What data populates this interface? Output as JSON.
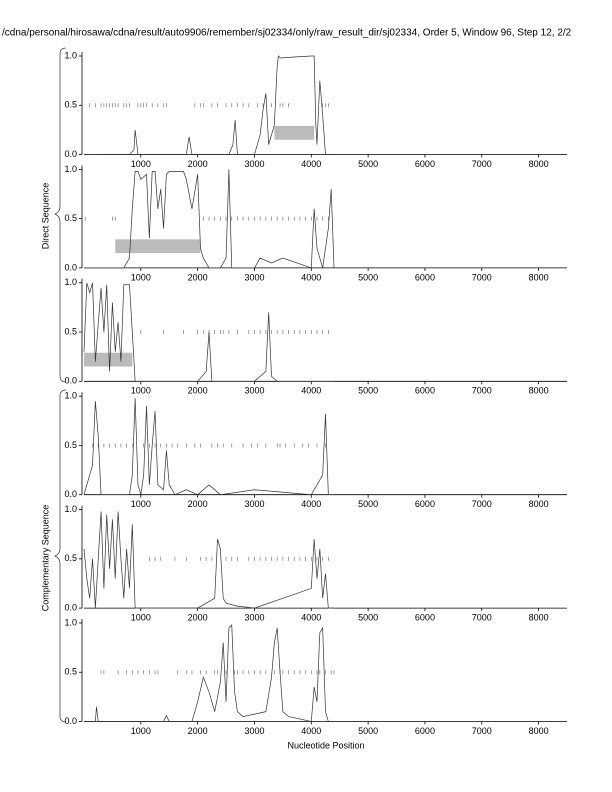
{
  "title": "/cdna/personal/hirosawa/cdna/result/auto9906/remember/sj02334/only/raw_result_dir/sj02334, Order 5, Window 96, Step 12, 2/2",
  "group_labels": [
    "Direct Sequence",
    "Complementary Sequence"
  ],
  "xlabel": "Nucleotide Position",
  "chart_data": [
    {
      "type": "line",
      "xlim": [
        0,
        8500
      ],
      "xticks": [
        1000,
        2000,
        3000,
        4000,
        5000,
        6000,
        7000,
        8000
      ],
      "ylim": [
        0,
        1
      ],
      "yticks": [
        {
          "value": 0,
          "label": "0.0"
        },
        {
          "value": 0.5,
          "label": "0.5"
        },
        {
          "value": 1,
          "label": "1.0"
        }
      ],
      "series": [
        {
          "color": "#333333",
          "x": [
            250,
            500,
            800,
            880,
            900,
            950,
            1100,
            1500,
            1800,
            1850,
            1900,
            2200,
            2550,
            2620,
            2660,
            2700,
            3000,
            3100,
            3150,
            3200,
            3250,
            3350,
            3400,
            3420,
            3450,
            3700,
            4000,
            4050,
            4080,
            4100,
            4150,
            4200,
            4250,
            4400
          ],
          "values": [
            0,
            0,
            0,
            0.05,
            0.25,
            0,
            0,
            0,
            0,
            0.18,
            0,
            0,
            0,
            0.1,
            0.35,
            0,
            0,
            0.2,
            0.45,
            0.62,
            0.1,
            0.3,
            0.9,
            1,
            0.98,
            0.99,
            1,
            1,
            0.3,
            0.1,
            0.75,
            0.4,
            0,
            0
          ]
        }
      ],
      "markers": {
        "y": 0.5,
        "x": [
          100,
          200,
          300,
          350,
          400,
          450,
          500,
          550,
          600,
          700,
          750,
          800,
          950,
          1000,
          1050,
          1100,
          1200,
          1300,
          1400,
          1450,
          1950,
          2050,
          2100,
          2250,
          2350,
          2500,
          2600,
          2700,
          2800,
          2900,
          3050,
          3150,
          3300,
          3450,
          3500,
          3600,
          4200,
          4250,
          4300
        ]
      },
      "regions": [
        [
          3350,
          4050
        ]
      ]
    },
    {
      "type": "line",
      "xlim": [
        0,
        8500
      ],
      "xticks": [
        1000,
        2000,
        3000,
        4000,
        5000,
        6000,
        7000,
        8000
      ],
      "ylim": [
        0,
        1
      ],
      "yticks": [
        {
          "value": 0,
          "label": "0.0"
        },
        {
          "value": 0.5,
          "label": "0.5"
        },
        {
          "value": 1,
          "label": "1.0"
        }
      ],
      "series": [
        {
          "color": "#333333",
          "x": [
            0,
            300,
            500,
            700,
            800,
            850,
            900,
            950,
            1000,
            1100,
            1150,
            1200,
            1250,
            1300,
            1350,
            1400,
            1450,
            1500,
            1600,
            1750,
            1800,
            1900,
            2000,
            2050,
            2100,
            2200,
            2400,
            2500,
            2550,
            2600,
            3000,
            3100,
            3300,
            3500,
            4000,
            4050,
            4100,
            4200,
            4300,
            4350,
            4400
          ],
          "values": [
            0,
            0,
            0,
            0,
            0.1,
            0.6,
            0.98,
            0.98,
            0.9,
            0.95,
            0.3,
            0.98,
            0.98,
            0.6,
            0.8,
            0.4,
            0.95,
            0.98,
            0.98,
            0.98,
            0.9,
            0.6,
            0.95,
            0.2,
            0.1,
            0,
            0,
            0.1,
            1.0,
            0,
            0,
            0.1,
            0.05,
            0.1,
            0,
            0.6,
            0.2,
            0,
            0.4,
            0.8,
            0
          ]
        }
      ],
      "markers": {
        "y": 0.5,
        "x": [
          20,
          500,
          550,
          2100,
          2200,
          2300,
          2400,
          2500,
          2600,
          2700,
          2800,
          2900,
          3000,
          3100,
          3200,
          3300,
          3400,
          3500,
          3600,
          3700,
          3800,
          3900,
          4000,
          4100,
          4200,
          4300
        ]
      },
      "regions": [
        [
          550,
          2050
        ]
      ]
    },
    {
      "type": "line",
      "xlim": [
        0,
        8500
      ],
      "xticks": [
        1000,
        2000,
        3000,
        4000,
        5000,
        6000,
        7000,
        8000
      ],
      "ylim": [
        0,
        1
      ],
      "yticks": [
        {
          "value": 0,
          "label": "0.0"
        },
        {
          "value": 0.5,
          "label": "0.5"
        },
        {
          "value": 1,
          "label": "1.0"
        }
      ],
      "series": [
        {
          "color": "#333333",
          "x": [
            0,
            50,
            100,
            150,
            200,
            300,
            350,
            400,
            450,
            500,
            550,
            600,
            650,
            700,
            750,
            800,
            850,
            900,
            1000,
            1500,
            2000,
            2150,
            2200,
            2250,
            2400,
            3000,
            3200,
            3250,
            3300,
            3400,
            4000,
            4400
          ],
          "values": [
            0.3,
            1,
            0.9,
            1,
            0.2,
            0.95,
            0.5,
            0.98,
            0.1,
            0.8,
            0.3,
            0.6,
            0.2,
            0.98,
            0.98,
            0.98,
            0.5,
            0,
            0,
            0,
            0,
            0.1,
            0.5,
            0,
            0,
            0,
            0.1,
            0.7,
            0.05,
            0,
            0,
            0
          ]
        }
      ],
      "markers": {
        "y": 0.5,
        "x": [
          1000,
          1400,
          1750,
          2000,
          2100,
          2200,
          2300,
          2400,
          2450,
          2550,
          2700,
          2900,
          3000,
          3100,
          3200,
          3300,
          3400,
          3500,
          3600,
          3700,
          3800,
          3900,
          4000,
          4100,
          4200,
          4300
        ]
      },
      "regions": [
        [
          0,
          850
        ]
      ]
    },
    {
      "type": "line",
      "xlim": [
        0,
        8500
      ],
      "xticks": [
        1000,
        2000,
        3000,
        4000,
        5000,
        6000,
        7000,
        8000
      ],
      "ylim": [
        0,
        1
      ],
      "yticks": [
        {
          "value": 0,
          "label": "0.0"
        },
        {
          "value": 0.5,
          "label": "0.5"
        },
        {
          "value": 1,
          "label": "1.0"
        }
      ],
      "series": [
        {
          "color": "#333333",
          "x": [
            0,
            150,
            200,
            250,
            300,
            500,
            800,
            850,
            900,
            950,
            1000,
            1050,
            1100,
            1150,
            1200,
            1250,
            1300,
            1400,
            1450,
            1500,
            1600,
            1800,
            2000,
            2200,
            2400,
            3000,
            4000,
            4200,
            4250,
            4300,
            4400
          ],
          "values": [
            0,
            0.3,
            0.95,
            0.6,
            0,
            0,
            0,
            0.2,
            0.98,
            0.1,
            0,
            0.2,
            0.9,
            0.1,
            0.5,
            0.85,
            0.1,
            0.05,
            0.45,
            0.1,
            0,
            0.05,
            0,
            0.1,
            0,
            0.05,
            0,
            0.2,
            0.82,
            0,
            0
          ]
        }
      ],
      "markers": {
        "y": 0.5,
        "x": [
          150,
          250,
          350,
          450,
          550,
          650,
          750,
          850,
          1050,
          1150,
          1250,
          1350,
          1450,
          1550,
          1650,
          1800,
          1950,
          2050,
          2250,
          2350,
          2450,
          2600,
          2800,
          2950,
          3050,
          3200,
          3400,
          3450,
          3550,
          3700,
          3850,
          3950,
          4100,
          4250
        ]
      }
    },
    {
      "type": "line",
      "xlim": [
        0,
        8500
      ],
      "xticks": [
        1000,
        2000,
        3000,
        4000,
        5000,
        6000,
        7000,
        8000
      ],
      "ylim": [
        0,
        1
      ],
      "yticks": [
        {
          "value": 0,
          "label": "0.0"
        },
        {
          "value": 0.5,
          "label": "0.5"
        },
        {
          "value": 1,
          "label": "1.0"
        }
      ],
      "series": [
        {
          "color": "#333333",
          "x": [
            0,
            50,
            100,
            150,
            200,
            300,
            350,
            400,
            450,
            500,
            550,
            600,
            650,
            700,
            750,
            800,
            850,
            900,
            1000,
            2000,
            2300,
            2350,
            2400,
            2450,
            2500,
            2700,
            3000,
            4000,
            4050,
            4100,
            4150,
            4200,
            4250,
            4300,
            4400
          ],
          "values": [
            0.6,
            0.3,
            0.1,
            0.5,
            0,
            0.98,
            0.2,
            0.95,
            0.4,
            0.9,
            0.3,
            0.98,
            0.5,
            0.1,
            0.6,
            0.2,
            0.85,
            0,
            0,
            0,
            0.1,
            0.7,
            0.6,
            0.1,
            0.05,
            0.02,
            0,
            0.2,
            0.7,
            0.3,
            0.6,
            0.1,
            0.35,
            0,
            0
          ]
        }
      ],
      "markers": {
        "y": 0.5,
        "x": [
          1150,
          1250,
          1350,
          1600,
          1800,
          2050,
          2150,
          2250,
          2500,
          2600,
          2700,
          2900,
          3000,
          3100,
          3200,
          3300,
          3400,
          3500,
          3600,
          3700,
          3800,
          3900,
          4000,
          4100,
          4200,
          4300
        ]
      }
    },
    {
      "type": "line",
      "xlim": [
        0,
        8500
      ],
      "xticks": [
        1000,
        2000,
        3000,
        4000,
        5000,
        6000,
        7000,
        8000
      ],
      "ylim": [
        0,
        1
      ],
      "yticks": [
        {
          "value": 0,
          "label": "0.0"
        },
        {
          "value": 0.5,
          "label": "0.5"
        },
        {
          "value": 1,
          "label": "1.0"
        }
      ],
      "series": [
        {
          "color": "#333333",
          "x": [
            0,
            200,
            220,
            250,
            1000,
            1400,
            1450,
            1500,
            1900,
            2000,
            2100,
            2200,
            2300,
            2400,
            2450,
            2500,
            2550,
            2600,
            2650,
            2700,
            2800,
            3200,
            3300,
            3350,
            3400,
            3450,
            3500,
            3600,
            4000,
            4050,
            4100,
            4150,
            4200,
            4250,
            4300,
            4400
          ],
          "values": [
            0,
            0,
            0.15,
            0,
            0,
            0,
            0.06,
            0,
            0,
            0.2,
            0.45,
            0.3,
            0.1,
            0.4,
            0.8,
            0.2,
            0.95,
            0.98,
            0.3,
            0.1,
            0.05,
            0.1,
            0.45,
            0.8,
            0.95,
            0.5,
            0.1,
            0.05,
            0,
            0.35,
            0.2,
            0.9,
            0.95,
            0.1,
            0,
            0
          ]
        }
      ],
      "markers": {
        "y": 0.5,
        "x": [
          300,
          350,
          600,
          750,
          850,
          950,
          1050,
          1150,
          1250,
          1300,
          1650,
          1800,
          1900,
          2050,
          2150,
          2300,
          2350,
          2500,
          2650,
          2700,
          2800,
          2900,
          3000,
          3100,
          3200,
          3350,
          3450,
          3500,
          3600,
          3700,
          3800,
          3900,
          4000,
          4100,
          4150,
          4250,
          4350,
          4400
        ]
      }
    }
  ]
}
